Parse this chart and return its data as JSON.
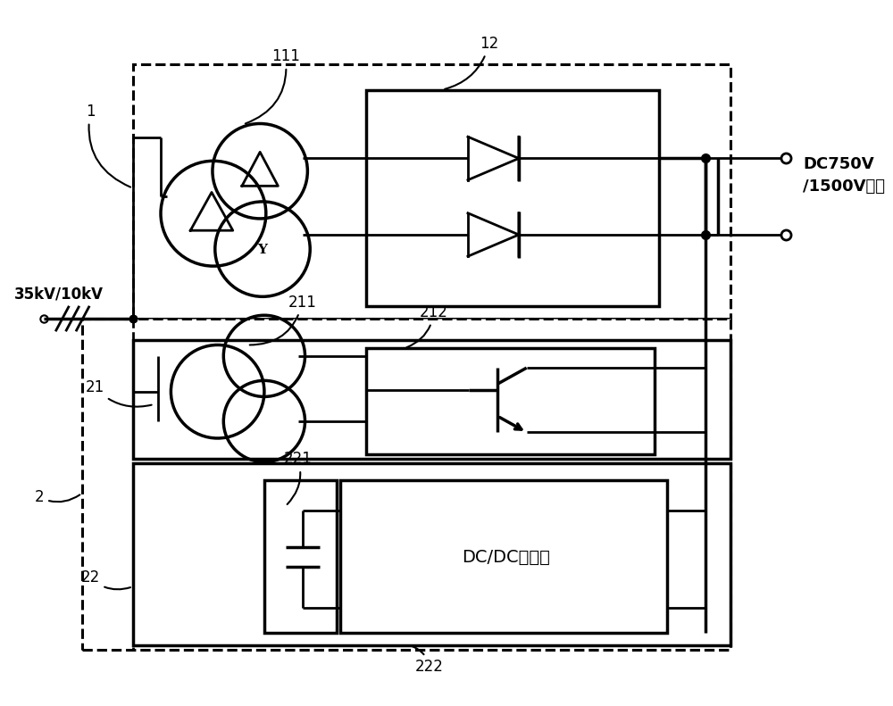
{
  "bg_color": "#ffffff",
  "lc": "#000000",
  "lw": 2.0,
  "lw2": 2.5,
  "dlw": 2.2,
  "label_111": "111",
  "label_12": "12",
  "label_1": "1",
  "label_21": "21",
  "label_211": "211",
  "label_212": "212",
  "label_2": "2",
  "label_22": "22",
  "label_221": "221",
  "label_222": "222",
  "label_input": "35kV/10kV",
  "label_output": "DC750V\n/1500V输出",
  "label_dcdc": "DC/DC变流器"
}
